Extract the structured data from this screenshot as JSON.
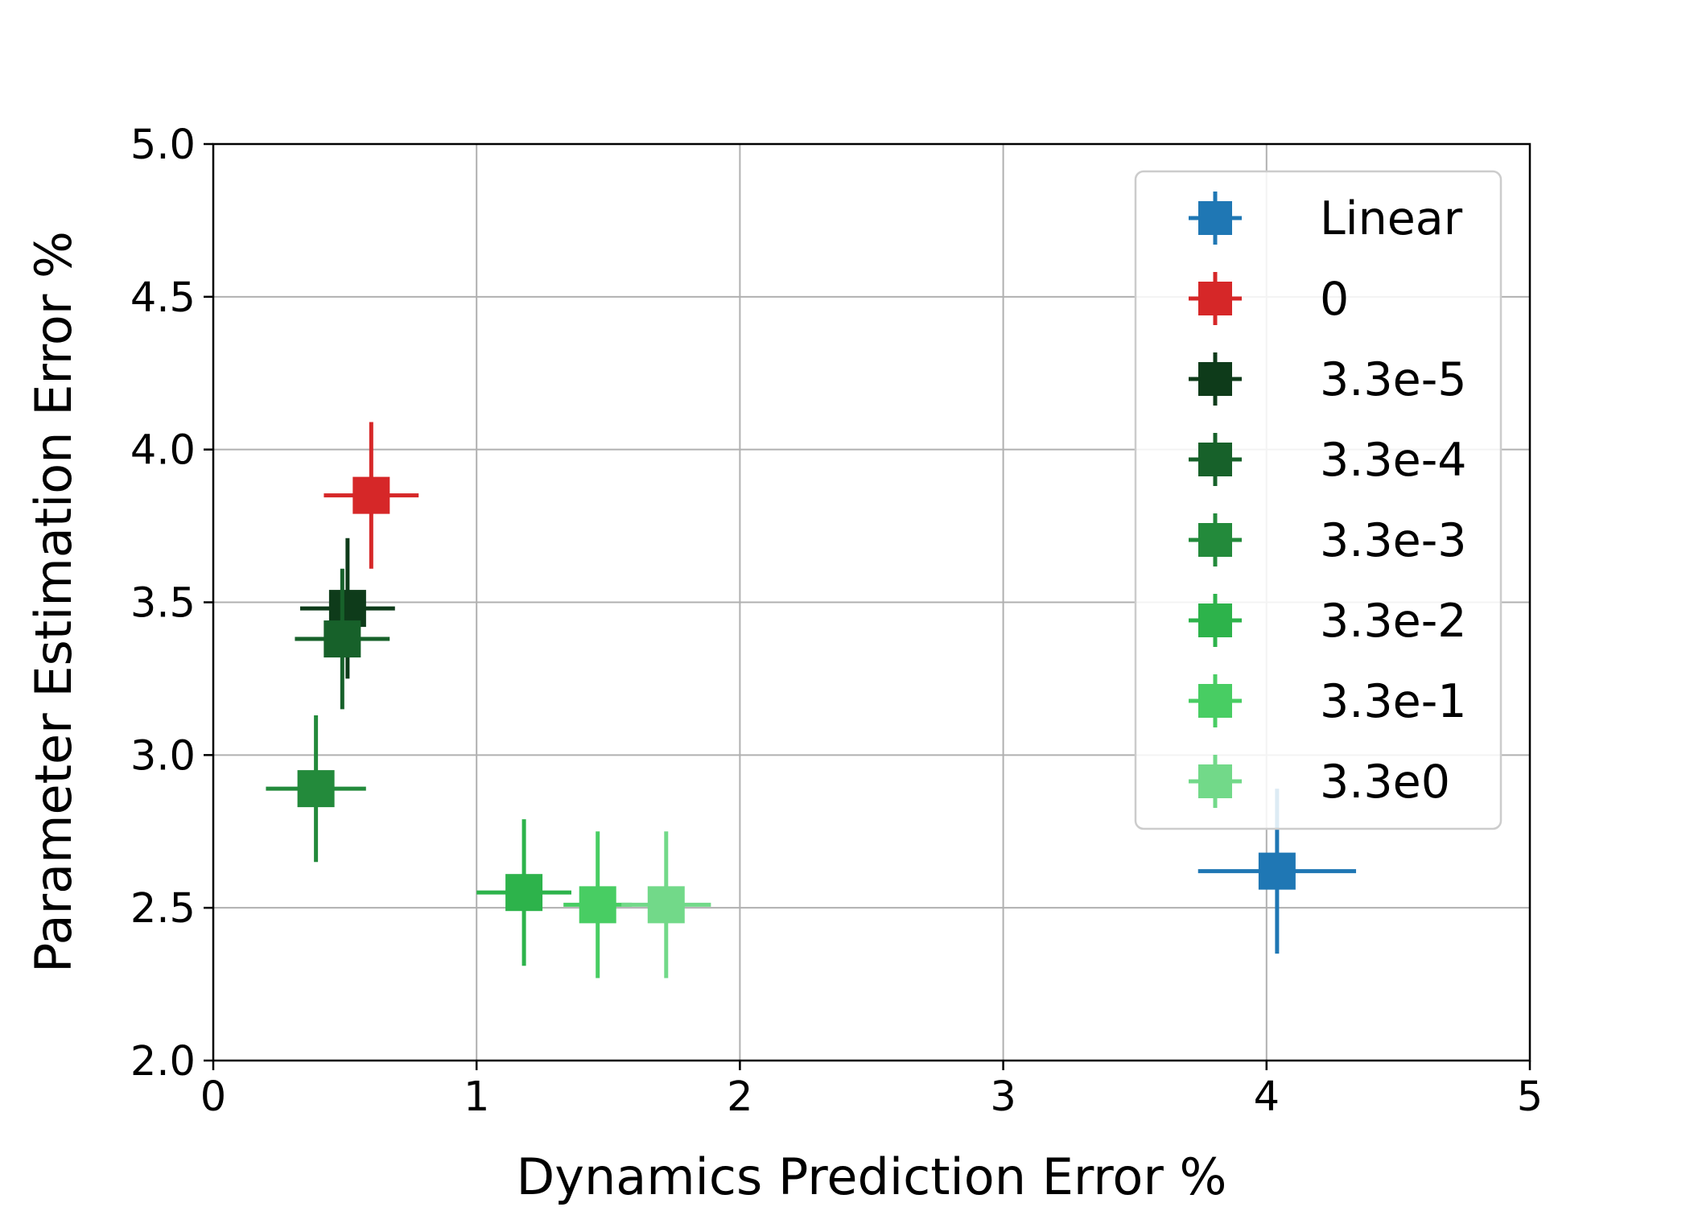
{
  "chart_data": {
    "type": "scatter",
    "title": "",
    "xlabel": "Dynamics Prediction Error %",
    "ylabel": "Parameter Estimation Error %",
    "xlim": [
      0,
      5
    ],
    "ylim": [
      2.0,
      5.0
    ],
    "x_ticks": [
      "0",
      "1",
      "2",
      "3",
      "4",
      "5"
    ],
    "y_ticks": [
      "2.0",
      "2.5",
      "3.0",
      "3.5",
      "4.0",
      "4.5",
      "5.0"
    ],
    "grid": true,
    "legend_position": "top-right",
    "series": [
      {
        "name": "Linear",
        "color": "#1f77b4",
        "x": 4.04,
        "y": 2.62,
        "x_err": 0.3,
        "y_err": 0.27
      },
      {
        "name": "0",
        "color": "#d62728",
        "x": 0.6,
        "y": 3.85,
        "x_err": 0.18,
        "y_err": 0.24
      },
      {
        "name": "3.3e-5",
        "color": "#0e3b1a",
        "x": 0.51,
        "y": 3.48,
        "x_err": 0.18,
        "y_err": 0.23
      },
      {
        "name": "3.3e-4",
        "color": "#17612a",
        "x": 0.49,
        "y": 3.38,
        "x_err": 0.18,
        "y_err": 0.23
      },
      {
        "name": "3.3e-3",
        "color": "#238a3b",
        "x": 0.39,
        "y": 2.89,
        "x_err": 0.19,
        "y_err": 0.24
      },
      {
        "name": "3.3e-2",
        "color": "#2db34b",
        "x": 1.18,
        "y": 2.55,
        "x_err": 0.18,
        "y_err": 0.24
      },
      {
        "name": "3.3e-1",
        "color": "#48cd63",
        "x": 1.46,
        "y": 2.51,
        "x_err": 0.13,
        "y_err": 0.24
      },
      {
        "name": "3.3e0",
        "color": "#72d989",
        "x": 1.72,
        "y": 2.51,
        "x_err": 0.17,
        "y_err": 0.24
      }
    ]
  }
}
